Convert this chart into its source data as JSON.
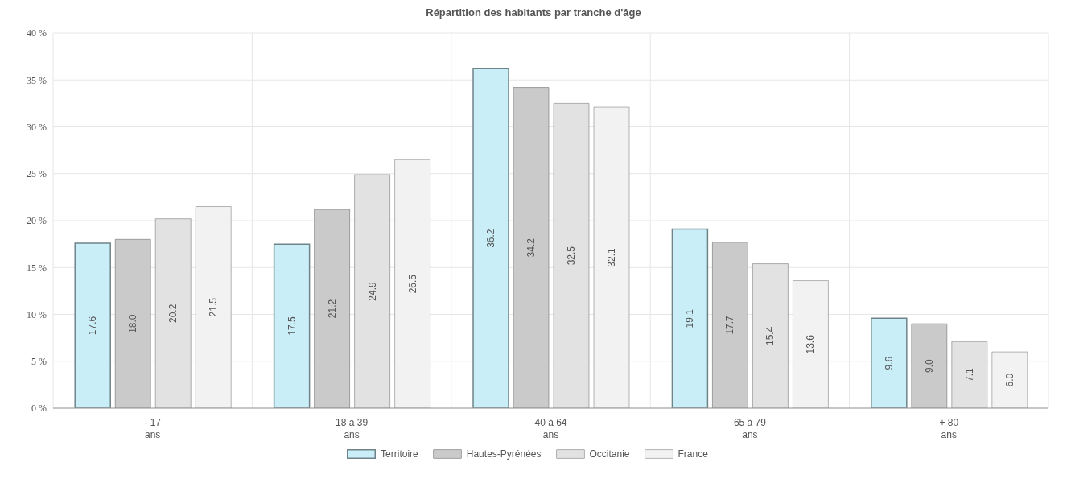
{
  "chart_data": {
    "type": "bar",
    "title": "Répartition des habitants par tranche d'âge",
    "categories": [
      "- 17\nans",
      "18 à 39\nans",
      "40 à 64\nans",
      "65 à 79\nans",
      "+ 80\nans"
    ],
    "series": [
      {
        "name": "Territoire",
        "color": "#c9eef8",
        "values": [
          17.6,
          17.5,
          36.2,
          19.1,
          9.6
        ],
        "value_labels": [
          "17.6",
          "17.5",
          "36.2",
          "19.1",
          "9.6"
        ]
      },
      {
        "name": "Hautes-Pyrénées",
        "color": "#cacaca",
        "values": [
          18.0,
          21.2,
          34.2,
          17.7,
          9.0
        ],
        "value_labels": [
          "18.0",
          "21.2",
          "34.2",
          "17.7",
          "9.0"
        ]
      },
      {
        "name": "Occitanie",
        "color": "#e2e2e2",
        "values": [
          20.2,
          24.9,
          32.5,
          15.4,
          7.1
        ],
        "value_labels": [
          "20.2",
          "24.9",
          "32.5",
          "15.4",
          "7.1"
        ]
      },
      {
        "name": "France",
        "color": "#f2f2f2",
        "values": [
          21.5,
          26.5,
          32.1,
          13.6,
          6.0
        ],
        "value_labels": [
          "21.5",
          "26.5",
          "32.1",
          "13.6",
          "6.0"
        ]
      }
    ],
    "ylim": [
      0,
      40
    ],
    "yticks": [
      {
        "value": 0,
        "label": "0 %"
      },
      {
        "value": 5,
        "label": "5 %"
      },
      {
        "value": 10,
        "label": "10 %"
      },
      {
        "value": 15,
        "label": "15 %"
      },
      {
        "value": 20,
        "label": "20 %"
      },
      {
        "value": 25,
        "label": "25 %"
      },
      {
        "value": 30,
        "label": "30 %"
      },
      {
        "value": 35,
        "label": "35 %"
      },
      {
        "value": 40,
        "label": "40 %"
      }
    ],
    "grid": true,
    "legend": "bottom"
  }
}
